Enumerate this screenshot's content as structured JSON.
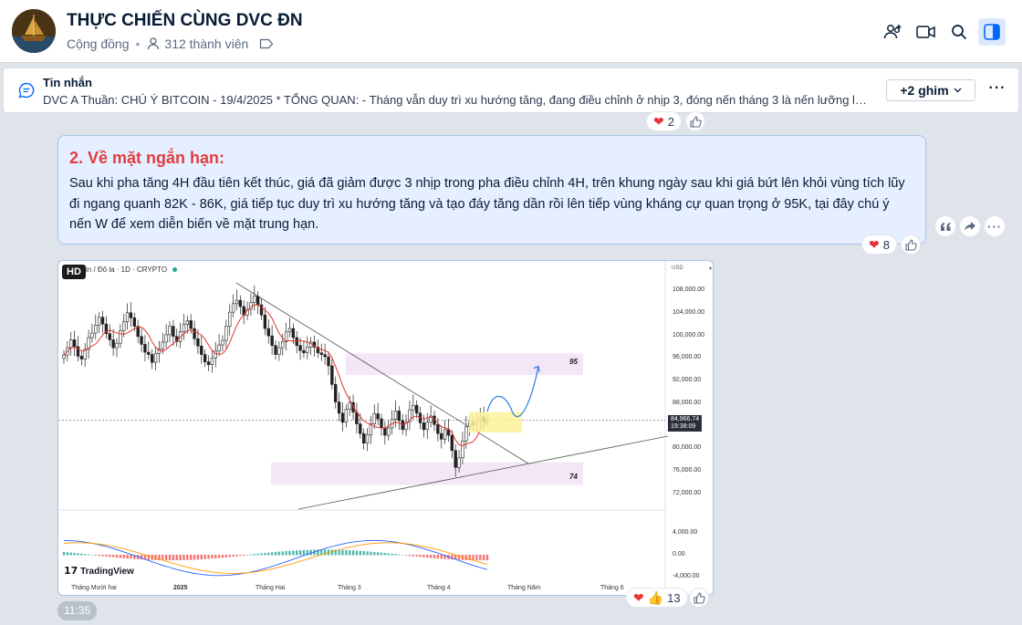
{
  "header": {
    "title": "THỰC CHIẾN CÙNG DVC ĐN",
    "category": "Cộng đồng",
    "members": "312 thành viên",
    "icons": [
      "add-member-icon",
      "video-call-icon",
      "search-icon",
      "sidebar-toggle-icon"
    ],
    "accent": "#0068ff"
  },
  "pinned": {
    "title": "Tin nhắn",
    "text": "DVC A Thuần: CHÚ Ý BITCOIN - 19/4/2025 * TỔNG QUAN: - Tháng vẫn duy trì xu hướng tăng, đang điều chỉnh ở nhịp 3, đóng nến tháng 3 là nến lưỡng lự ti...",
    "more_pins": "+2 ghim",
    "menu": "···"
  },
  "prev_message": {
    "reaction_count": "2"
  },
  "message": {
    "heading": "2. Về mặt ngắn hạn:",
    "body": "Sau khi pha tăng 4H đầu tiên kết thúc, giá đã giảm được 3 nhịp trong pha điều chỉnh 4H, trên khung ngày sau khi giá bứt lên khỏi vùng tích lũy đi ngang quanh 82K - 86K, giá tiếp tục duy trì xu hướng tăng và tạo đáy tăng dần rồi lên tiếp vùng kháng cự quan trọng ở 95K, tại đây chú ý nến W để xem diễn biến về mặt trung hạn.",
    "reaction_count": "8"
  },
  "image_message": {
    "hd_badge": "HD",
    "reaction_count": "13",
    "timestamp": "11:35"
  },
  "chart_data": {
    "type": "candlestick",
    "caption": "in / Đô la · 1D · CRYPTO",
    "currency": "USD",
    "price_ticks": [
      "108,000.00",
      "104,000.00",
      "100,000.00",
      "96,000.00",
      "92,000.00",
      "88,000.00",
      "80,000.00",
      "76,000.00",
      "72,000.00"
    ],
    "price_tick_values": [
      108000,
      104000,
      100000,
      96000,
      92000,
      88000,
      80000,
      76000,
      72000
    ],
    "ylim": [
      70000,
      110000
    ],
    "current_price": "84,966.74",
    "current_time": "19:38:09",
    "current_value": 84966.74,
    "zones": [
      {
        "label": "95",
        "low": 93000,
        "high": 96800,
        "color": "#f3e6f6"
      },
      {
        "label": "74",
        "low": 73500,
        "high": 77500,
        "color": "#f3e6f6"
      }
    ],
    "macd_ticks": [
      "4,000.00",
      "0.00",
      "-4,000.00"
    ],
    "macd_tick_values": [
      4000,
      0,
      -4000
    ],
    "time_labels": [
      "Tháng Mười hai",
      "2025",
      "Tháng Hai",
      "Tháng 3",
      "Tháng 4",
      "Tháng Năm",
      "Tháng 6"
    ],
    "brand": "TradingView",
    "closes": [
      96500,
      97800,
      99200,
      98000,
      96300,
      95800,
      97500,
      99600,
      100400,
      101800,
      103200,
      102000,
      100300,
      99200,
      97800,
      98600,
      100800,
      102400,
      104000,
      103100,
      101600,
      99800,
      98400,
      97000,
      96600,
      95200,
      96800,
      97600,
      98800,
      100100,
      101600,
      99800,
      98900,
      100600,
      101900,
      102600,
      101200,
      99400,
      98100,
      96600,
      95300,
      94800,
      96000,
      97200,
      98300,
      99100,
      101600,
      104100,
      105600,
      106200,
      105100,
      103600,
      104600,
      105800,
      106900,
      105400,
      103600,
      101200,
      99900,
      98200,
      96600,
      97800,
      98900,
      100600,
      101200,
      99600,
      98200,
      97300,
      96900,
      97900,
      98800,
      97900,
      96900,
      96600,
      96200,
      94600,
      91300,
      88200,
      86200,
      84600,
      86900,
      88100,
      86400,
      84300,
      82600,
      80900,
      82400,
      84300,
      86100,
      85200,
      83600,
      82300,
      83600,
      85100,
      86600,
      84900,
      83300,
      84600,
      86800,
      87600,
      86200,
      84500,
      83300,
      84600,
      85700,
      84200,
      82600,
      81600,
      83300,
      82300,
      79600,
      76600,
      78300,
      81300,
      83800,
      84600,
      84100,
      84900,
      85500,
      84700,
      84967
    ]
  }
}
